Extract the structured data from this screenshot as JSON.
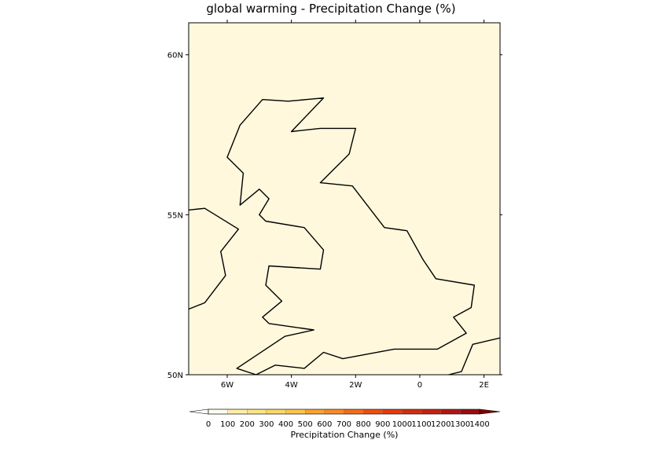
{
  "title": "global warming - Precipitation Change (%)",
  "map": {
    "background_color": "#fff8dc",
    "coastline_color": "#000000",
    "lon_range": [
      -7.2,
      2.5
    ],
    "lat_range": [
      50.0,
      61.0
    ],
    "x_ticks": [
      {
        "lon": -6,
        "label": "6W"
      },
      {
        "lon": -4,
        "label": "4W"
      },
      {
        "lon": -2,
        "label": "2W"
      },
      {
        "lon": 0,
        "label": "0"
      },
      {
        "lon": 2,
        "label": "2E"
      }
    ],
    "y_ticks": [
      {
        "lat": 60,
        "label": "60N"
      },
      {
        "lat": 55,
        "label": "55N"
      },
      {
        "lat": 50,
        "label": "50N"
      }
    ],
    "coastlines": [
      [
        [
          -5.1,
          50.0
        ],
        [
          -5.7,
          50.2
        ],
        [
          -4.2,
          51.2
        ],
        [
          -3.3,
          51.4
        ],
        [
          -4.7,
          51.6
        ],
        [
          -4.9,
          51.8
        ],
        [
          -4.3,
          52.3
        ],
        [
          -4.8,
          52.8
        ],
        [
          -4.7,
          53.4
        ],
        [
          -3.1,
          53.3
        ],
        [
          -3.0,
          53.9
        ],
        [
          -3.6,
          54.6
        ],
        [
          -4.8,
          54.8
        ],
        [
          -5.0,
          55.0
        ],
        [
          -4.7,
          55.5
        ],
        [
          -5.0,
          55.8
        ],
        [
          -5.6,
          55.3
        ],
        [
          -5.5,
          56.3
        ],
        [
          -6.0,
          56.8
        ],
        [
          -5.6,
          57.8
        ],
        [
          -4.9,
          58.6
        ],
        [
          -4.1,
          58.55
        ],
        [
          -3.0,
          58.65
        ],
        [
          -4.0,
          57.6
        ],
        [
          -3.1,
          57.7
        ],
        [
          -2.0,
          57.7
        ],
        [
          -2.2,
          56.9
        ],
        [
          -3.1,
          56.0
        ],
        [
          -2.1,
          55.9
        ],
        [
          -1.1,
          54.6
        ],
        [
          -0.4,
          54.5
        ],
        [
          0.1,
          53.6
        ],
        [
          0.5,
          53.0
        ],
        [
          1.7,
          52.8
        ],
        [
          1.6,
          52.1
        ],
        [
          1.05,
          51.8
        ],
        [
          1.45,
          51.3
        ],
        [
          0.55,
          50.8
        ],
        [
          -0.8,
          50.8
        ],
        [
          -2.4,
          50.5
        ],
        [
          -3.0,
          50.7
        ],
        [
          -3.6,
          50.2
        ],
        [
          -4.5,
          50.3
        ],
        [
          -5.1,
          50.0
        ]
      ],
      [
        [
          -7.2,
          55.15
        ],
        [
          -6.7,
          55.2
        ],
        [
          -5.65,
          54.55
        ],
        [
          -6.2,
          53.85
        ],
        [
          -6.05,
          53.1
        ],
        [
          -6.7,
          52.25
        ],
        [
          -7.2,
          52.05
        ]
      ],
      [
        [
          0.9,
          50.0
        ],
        [
          1.3,
          50.1
        ],
        [
          1.65,
          50.95
        ],
        [
          2.5,
          51.15
        ]
      ]
    ]
  },
  "colorbar": {
    "label": "Precipitation Change (%)",
    "ticks": [
      "0",
      "100",
      "200",
      "300",
      "400",
      "500",
      "600",
      "700",
      "800",
      "900",
      "1000",
      "1100",
      "1200",
      "1300",
      "1400"
    ],
    "colors": [
      "#fffff0",
      "#fff8d0",
      "#ffefa8",
      "#ffe483",
      "#ffd766",
      "#ffc54a",
      "#fda22e",
      "#fb8a23",
      "#f76b18",
      "#f14e10",
      "#e63a0f",
      "#d62b10",
      "#c61f12",
      "#b21514",
      "#9a0c14",
      "#7a0010"
    ],
    "under_color": "#ffffff",
    "over_color": "#800000"
  }
}
